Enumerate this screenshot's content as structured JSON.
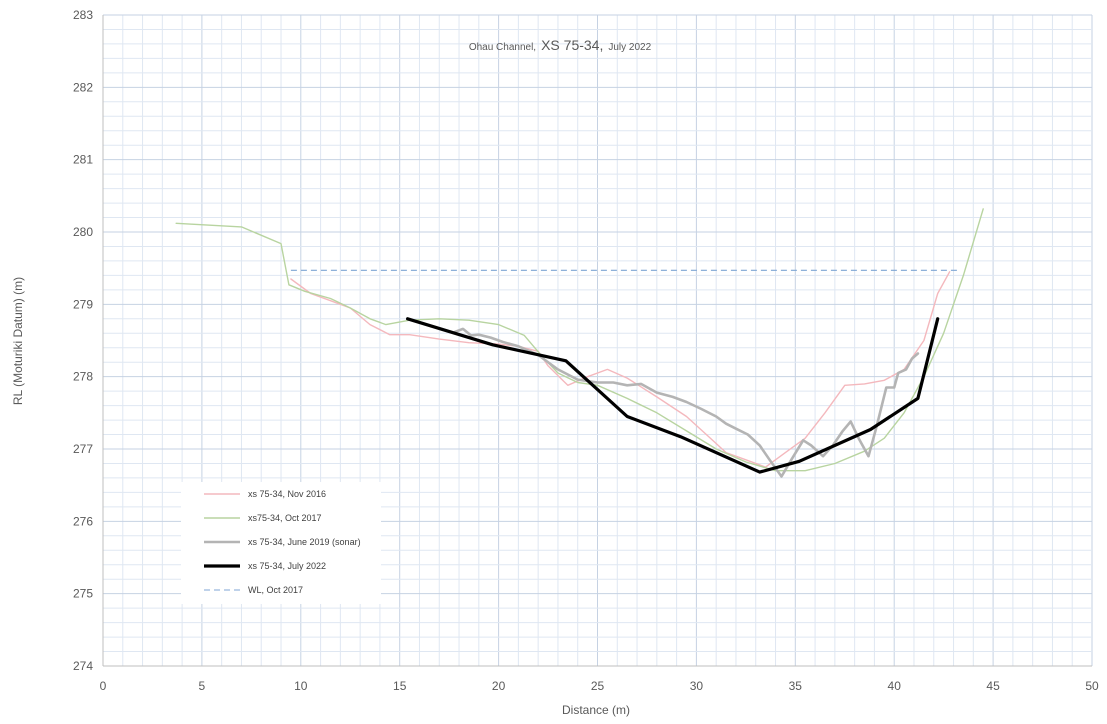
{
  "chart_data": {
    "type": "line",
    "title": {
      "prefix": "Ohau Channel,",
      "main": "XS 75-34,",
      "suffix": "July 2022"
    },
    "xlabel": "Distance (m)",
    "ylabel": "RL (Moturiki Datum) (m)",
    "xlim": [
      0,
      50
    ],
    "ylim": [
      274,
      283
    ],
    "x_ticks": [
      0,
      5,
      10,
      15,
      20,
      25,
      30,
      35,
      40,
      45,
      50
    ],
    "y_ticks": [
      274,
      275,
      276,
      277,
      278,
      279,
      280,
      281,
      282,
      283
    ],
    "grid": "on (major and minor)",
    "legend_position": "bottom-left",
    "series": [
      {
        "name": "xs 75-34, Nov 2016",
        "color": "#f4b8bd",
        "style": "solid",
        "points": [
          [
            9.5,
            279.35
          ],
          [
            10.5,
            279.15
          ],
          [
            11.5,
            279.05
          ],
          [
            12.5,
            278.95
          ],
          [
            13.5,
            278.72
          ],
          [
            14.5,
            278.58
          ],
          [
            15.5,
            278.58
          ],
          [
            17,
            278.52
          ],
          [
            18.5,
            278.47
          ],
          [
            20,
            278.45
          ],
          [
            21,
            278.42
          ],
          [
            22,
            278.35
          ],
          [
            22.5,
            278.15
          ],
          [
            23.5,
            277.88
          ],
          [
            24.5,
            278.0
          ],
          [
            25.5,
            278.1
          ],
          [
            26.5,
            277.98
          ],
          [
            28,
            277.72
          ],
          [
            29.5,
            277.45
          ],
          [
            30.5,
            277.2
          ],
          [
            31.5,
            276.95
          ],
          [
            32.5,
            276.85
          ],
          [
            33.5,
            276.75
          ],
          [
            34.5,
            276.95
          ],
          [
            35.5,
            277.15
          ],
          [
            36.5,
            277.5
          ],
          [
            37.5,
            277.88
          ],
          [
            38.5,
            277.9
          ],
          [
            39.5,
            277.95
          ],
          [
            40.5,
            278.1
          ],
          [
            41.5,
            278.5
          ],
          [
            42.2,
            279.15
          ],
          [
            42.8,
            279.45
          ]
        ]
      },
      {
        "name": "xs75-34, Oct 2017",
        "color": "#b8d4a0",
        "style": "solid",
        "points": [
          [
            3.7,
            280.12
          ],
          [
            7,
            280.07
          ],
          [
            9,
            279.84
          ],
          [
            9.4,
            279.27
          ],
          [
            10.2,
            279.18
          ],
          [
            11.5,
            279.08
          ],
          [
            12.5,
            278.95
          ],
          [
            13.5,
            278.8
          ],
          [
            14.3,
            278.72
          ],
          [
            15.5,
            278.78
          ],
          [
            17,
            278.8
          ],
          [
            18.5,
            278.78
          ],
          [
            20,
            278.72
          ],
          [
            21.3,
            278.57
          ],
          [
            22.2,
            278.28
          ],
          [
            23,
            278.05
          ],
          [
            24,
            277.92
          ],
          [
            25,
            277.88
          ],
          [
            26.5,
            277.7
          ],
          [
            28,
            277.5
          ],
          [
            29.5,
            277.25
          ],
          [
            31,
            277.0
          ],
          [
            32.5,
            276.82
          ],
          [
            34,
            276.7
          ],
          [
            35.5,
            276.7
          ],
          [
            37,
            276.8
          ],
          [
            38.5,
            276.97
          ],
          [
            39.5,
            277.15
          ],
          [
            40.5,
            277.5
          ],
          [
            41.5,
            278.0
          ],
          [
            42.5,
            278.6
          ],
          [
            43.5,
            279.4
          ],
          [
            44.5,
            280.32
          ]
        ]
      },
      {
        "name": "xs 75-34, June 2019 (sonar)",
        "color": "#b4b4b4",
        "style": "solid",
        "points": [
          [
            17.8,
            278.62
          ],
          [
            18.2,
            278.66
          ],
          [
            18.6,
            278.57
          ],
          [
            19.0,
            278.58
          ],
          [
            19.6,
            278.54
          ],
          [
            20.2,
            278.48
          ],
          [
            21.0,
            278.42
          ],
          [
            22.0,
            278.3
          ],
          [
            23.0,
            278.1
          ],
          [
            24.0,
            277.96
          ],
          [
            25.0,
            277.92
          ],
          [
            25.8,
            277.92
          ],
          [
            26.5,
            277.88
          ],
          [
            27.2,
            277.9
          ],
          [
            28.0,
            277.78
          ],
          [
            28.8,
            277.72
          ],
          [
            29.5,
            277.65
          ],
          [
            30.2,
            277.56
          ],
          [
            31.0,
            277.45
          ],
          [
            31.5,
            277.35
          ],
          [
            32.0,
            277.28
          ],
          [
            32.6,
            277.2
          ],
          [
            33.2,
            277.05
          ],
          [
            33.7,
            276.85
          ],
          [
            34.3,
            276.62
          ],
          [
            34.8,
            276.85
          ],
          [
            35.4,
            277.12
          ],
          [
            35.8,
            277.05
          ],
          [
            36.4,
            276.9
          ],
          [
            36.9,
            277.05
          ],
          [
            37.4,
            277.25
          ],
          [
            37.8,
            277.38
          ],
          [
            38.2,
            277.15
          ],
          [
            38.7,
            276.9
          ],
          [
            39.1,
            277.3
          ],
          [
            39.6,
            277.85
          ],
          [
            40.0,
            277.85
          ],
          [
            40.2,
            278.05
          ],
          [
            40.6,
            278.1
          ],
          [
            40.9,
            278.25
          ],
          [
            41.2,
            278.32
          ]
        ]
      },
      {
        "name": "xs 75-34, July 2022",
        "color": "#000000",
        "style": "solid",
        "points": [
          [
            15.4,
            278.8
          ],
          [
            19.7,
            278.44
          ],
          [
            23.4,
            278.22
          ],
          [
            26.5,
            277.45
          ],
          [
            29.2,
            277.17
          ],
          [
            33.2,
            276.68
          ],
          [
            35.2,
            276.83
          ],
          [
            38.8,
            277.27
          ],
          [
            41.2,
            277.7
          ],
          [
            42.2,
            278.8
          ]
        ]
      },
      {
        "name": "WL, Oct 2017",
        "color": "#7fa6d4",
        "style": "dashed",
        "points": [
          [
            9.5,
            279.47
          ],
          [
            43.2,
            279.47
          ]
        ]
      }
    ]
  }
}
